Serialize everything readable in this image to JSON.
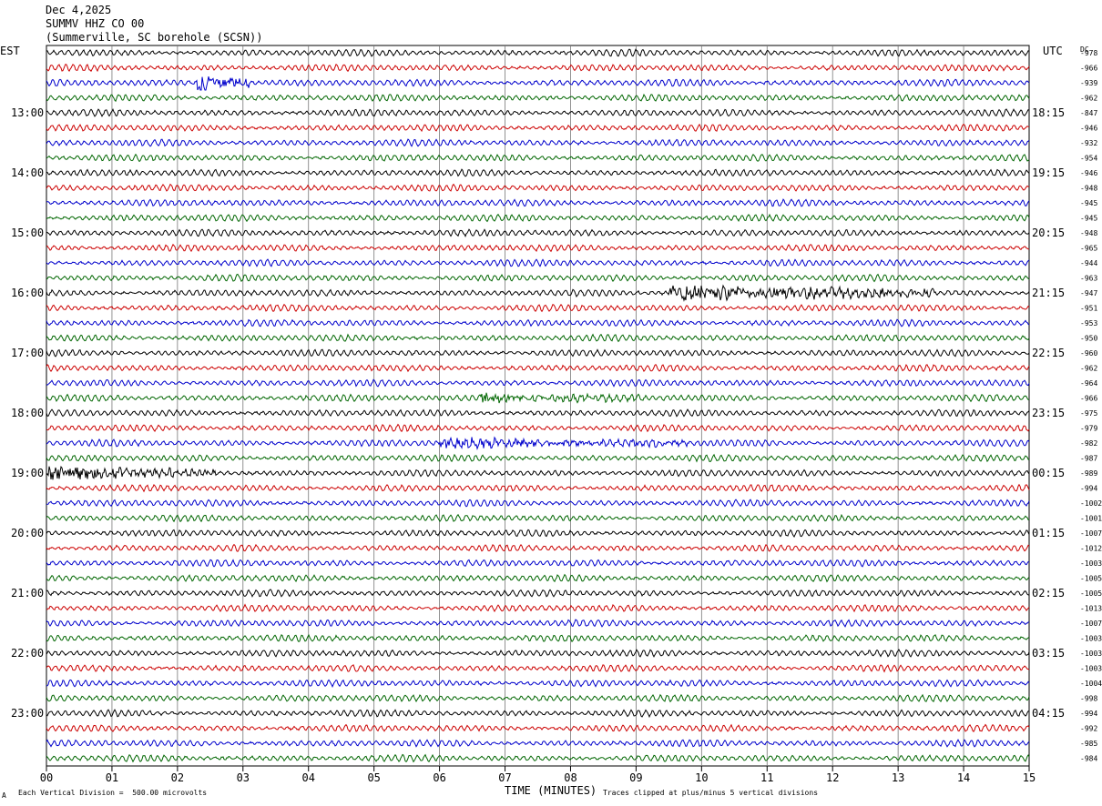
{
  "header": {
    "date": "Dec 4,2025",
    "station": "SUMMV HHZ CO 00",
    "location": "(Summerville, SC borehole (SCSN))"
  },
  "left_zone": "EST",
  "right_zone": "UTC",
  "dc_label": "DC",
  "footer": {
    "scale_mark": "A",
    "scale_note": "Each Vertical Division =  500.00 microvolts",
    "xlabel": "TIME (MINUTES)",
    "clip_note": "Traces clipped at plus/minus 5 vertical divisions"
  },
  "chart_data": {
    "type": "line",
    "xlabel": "TIME (MINUTES)",
    "xlim": [
      0,
      15
    ],
    "x_ticks": [
      "00",
      "01",
      "02",
      "03",
      "04",
      "05",
      "06",
      "07",
      "08",
      "09",
      "10",
      "11",
      "12",
      "13",
      "14",
      "15"
    ],
    "trace_colors": [
      "#000000",
      "#cc0000",
      "#0000cc",
      "#006600"
    ],
    "est_hour_labels": [
      "13:00",
      "14:00",
      "15:00",
      "16:00",
      "17:00",
      "18:00",
      "19:00",
      "20:00",
      "21:00",
      "22:00",
      "23:00"
    ],
    "utc_hour_labels": [
      "18:15",
      "19:15",
      "20:15",
      "21:15",
      "22:15",
      "23:15",
      "00:15",
      "01:15",
      "02:15",
      "03:15",
      "04:15"
    ],
    "hour_label_rows": [
      4,
      8,
      12,
      16,
      20,
      24,
      28,
      32,
      36,
      40,
      44
    ],
    "dc_offsets": [
      "-978",
      "-966",
      "-939",
      "-962",
      "-847",
      "-946",
      "-932",
      "-954",
      "-946",
      "-948",
      "-945",
      "-945",
      "-948",
      "-965",
      "-944",
      "-963",
      "-947",
      "-951",
      "-953",
      "-950",
      "-960",
      "-962",
      "-964",
      "-966",
      "-975",
      "-979",
      "-982",
      "-987",
      "-989",
      "-994",
      "-1002",
      "-1001",
      "-1007",
      "-1012",
      "-1003",
      "-1005",
      "-1005",
      "-1013",
      "-1007",
      "-1003",
      "-1003",
      "-1003",
      "-1004",
      "-998",
      "-994",
      "-992",
      "-985",
      "-984"
    ],
    "events": [
      {
        "row": 2,
        "start_min": 2.3,
        "end_min": 3.1,
        "amplitude": 3.0
      },
      {
        "row": 16,
        "start_min": 9.5,
        "end_min": 13.6,
        "amplitude": 2.4
      },
      {
        "row": 23,
        "start_min": 6.6,
        "end_min": 9.2,
        "amplitude": 1.3
      },
      {
        "row": 26,
        "start_min": 6.0,
        "end_min": 9.8,
        "amplitude": 1.4
      },
      {
        "row": 28,
        "start_min": 0.0,
        "end_min": 2.6,
        "amplitude": 2.0
      }
    ]
  }
}
